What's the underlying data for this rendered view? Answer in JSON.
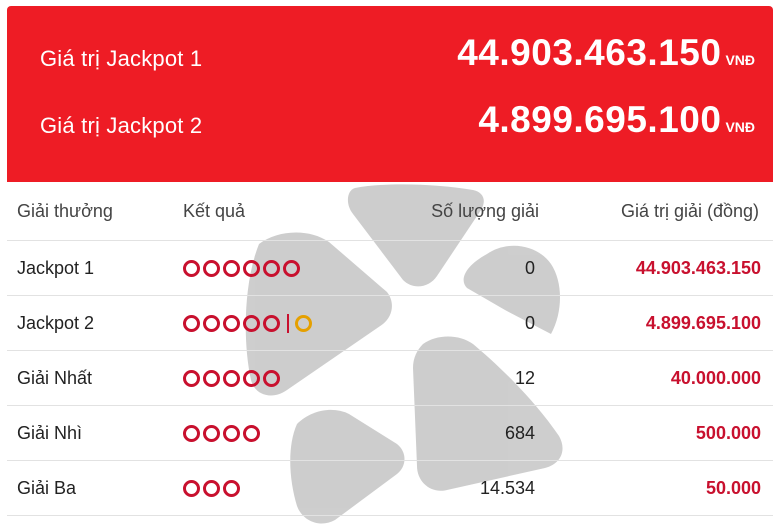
{
  "jackpots": [
    {
      "label": "Giá trị Jackpot 1",
      "amount": "44.903.463.150",
      "unit": "VNĐ"
    },
    {
      "label": "Giá trị Jackpot 2",
      "amount": "4.899.695.100",
      "unit": "VNĐ"
    }
  ],
  "table": {
    "headers": {
      "prize": "Giải thưởng",
      "result": "Kết quả",
      "count": "Số lượng giải",
      "value": "Giá trị giải (đồng)"
    },
    "rows": [
      {
        "prize": "Jackpot 1",
        "balls": 6,
        "special_balls": 0,
        "count": "0",
        "value": "44.903.463.150"
      },
      {
        "prize": "Jackpot 2",
        "balls": 5,
        "special_balls": 1,
        "count": "0",
        "value": "4.899.695.100"
      },
      {
        "prize": "Giải Nhất",
        "balls": 5,
        "special_balls": 0,
        "count": "12",
        "value": "40.000.000"
      },
      {
        "prize": "Giải Nhì",
        "balls": 4,
        "special_balls": 0,
        "count": "684",
        "value": "500.000"
      },
      {
        "prize": "Giải Ba",
        "balls": 3,
        "special_balls": 0,
        "count": "14.534",
        "value": "50.000"
      }
    ]
  },
  "colors": {
    "panel": "#ee1c25",
    "ball": "#c8102e",
    "special_ball": "#e5a000",
    "value_text": "#c8102e"
  }
}
